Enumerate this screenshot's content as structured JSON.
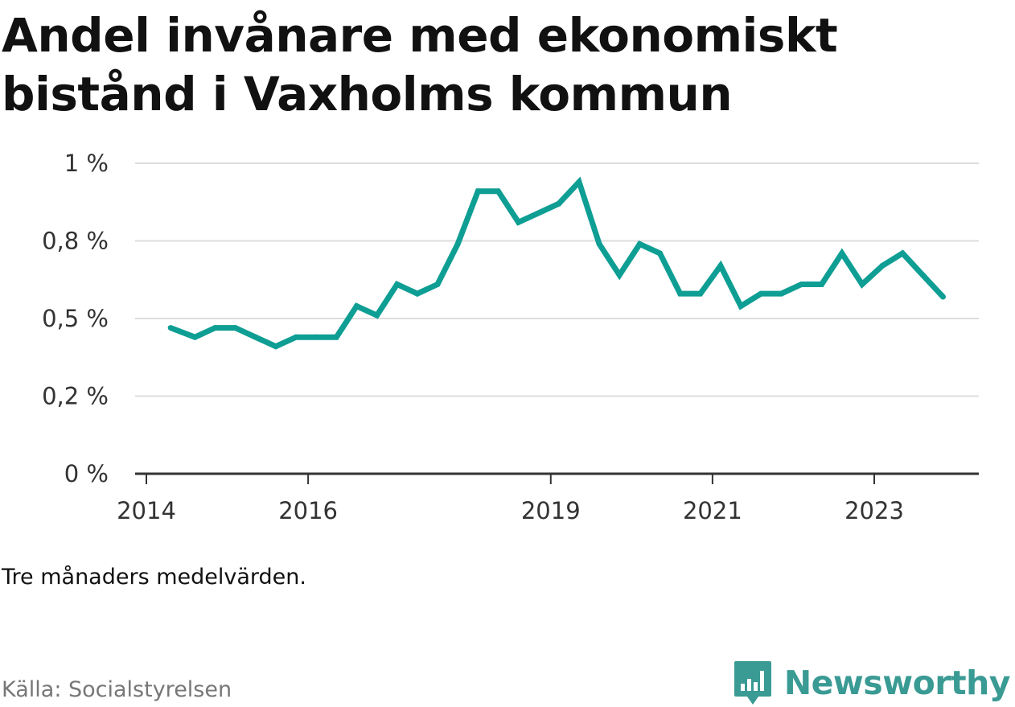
{
  "title": "Andel invånare med ekonomiskt bistånd i Vaxholms kommun",
  "note": "Tre månaders medelvärden.",
  "source": "Källa: Socialstyrelsen",
  "brand": {
    "name": "Newsworthy",
    "logo_icon": "newsworthy-logo-icon",
    "color": "#3a9a94"
  },
  "colors": {
    "line": "#0e9e94",
    "grid": "#dddddd",
    "axis": "#333333"
  },
  "chart_data": {
    "type": "line",
    "title": "Andel invånare med ekonomiskt bistånd i Vaxholms kommun",
    "xlabel": "",
    "ylabel": "",
    "ylim": [
      0,
      1.0
    ],
    "xlim": [
      2014,
      2024.3
    ],
    "grid": true,
    "y_ticks": [
      0,
      0.25,
      0.5,
      0.75,
      1.0
    ],
    "y_tick_labels": [
      "0 %",
      "0,2 %",
      "0,5 %",
      "0,8 %",
      "1 %"
    ],
    "x_ticks": [
      2014,
      2016,
      2019,
      2021,
      2023
    ],
    "x_tick_labels": [
      "2014",
      "2016",
      "2019",
      "2021",
      "2023"
    ],
    "series": [
      {
        "x": [
          2014.3,
          2014.6,
          2014.85,
          2015.1,
          2015.35,
          2015.6,
          2015.85,
          2016.1,
          2016.35,
          2016.6,
          2016.85,
          2017.1,
          2017.35,
          2017.6,
          2017.85,
          2018.1,
          2018.35,
          2018.6,
          2018.85,
          2019.1,
          2019.35,
          2019.6,
          2019.85,
          2020.1,
          2020.35,
          2020.6,
          2020.85,
          2021.1,
          2021.35,
          2021.6,
          2021.85,
          2022.1,
          2022.35,
          2022.6,
          2022.85,
          2023.1,
          2023.35,
          2023.6,
          2023.85
        ],
        "values": [
          0.47,
          0.44,
          0.47,
          0.47,
          0.44,
          0.41,
          0.44,
          0.44,
          0.44,
          0.54,
          0.51,
          0.61,
          0.58,
          0.61,
          0.74,
          0.91,
          0.91,
          0.81,
          0.84,
          0.87,
          0.94,
          0.74,
          0.64,
          0.74,
          0.71,
          0.58,
          0.58,
          0.67,
          0.54,
          0.58,
          0.58,
          0.61,
          0.61,
          0.71,
          0.61,
          0.67,
          0.71,
          0.64,
          0.57
        ]
      }
    ]
  }
}
